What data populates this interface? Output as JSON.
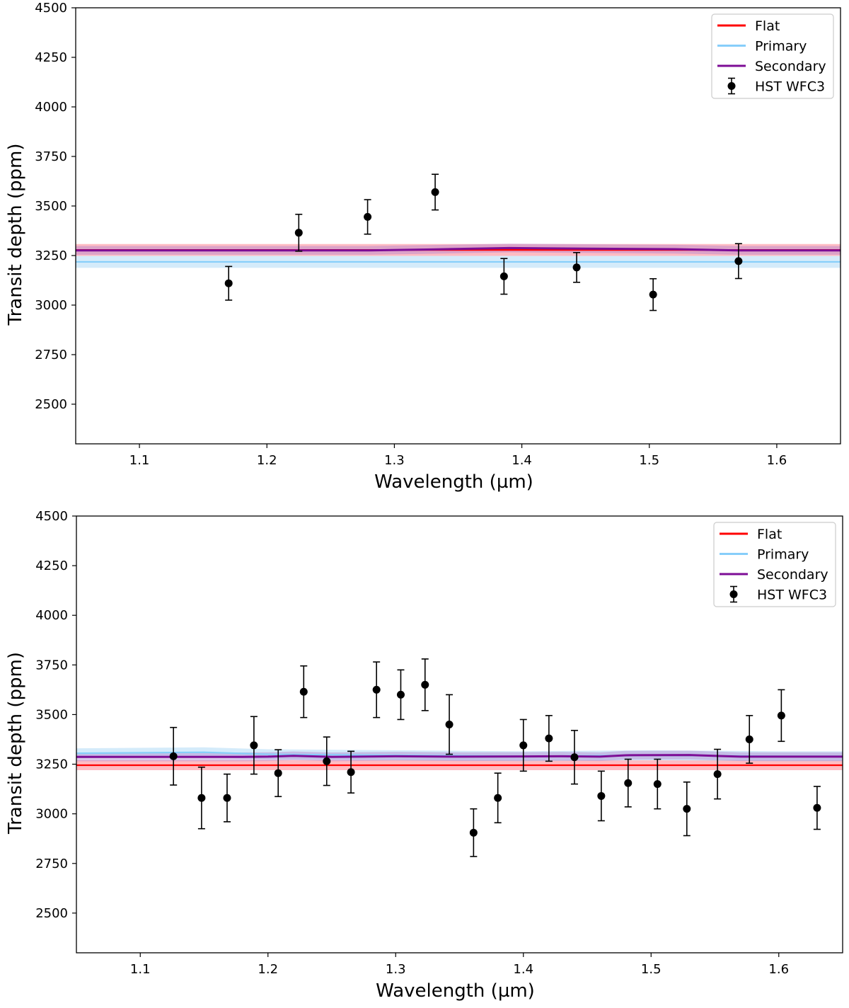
{
  "chart_data": [
    {
      "type": "scatter",
      "title": "",
      "xlabel": "Wavelength (µm)",
      "ylabel": "Transit depth (ppm)",
      "xlim": [
        1.05,
        1.65
      ],
      "ylim": [
        2300,
        4500
      ],
      "xticks": [
        1.1,
        1.2,
        1.3,
        1.4,
        1.5,
        1.6
      ],
      "xtick_labels": [
        "1.1",
        "1.2",
        "1.3",
        "1.4",
        "1.5",
        "1.6"
      ],
      "yticks": [
        2500,
        2750,
        3000,
        3250,
        3500,
        3750,
        4000,
        4250,
        4500
      ],
      "ytick_labels": [
        "2500",
        "2750",
        "3000",
        "3250",
        "3500",
        "3750",
        "4000",
        "4250",
        "4500"
      ],
      "grid": false,
      "legend_position": "top-right",
      "legend": [
        "Flat",
        "Primary",
        "Secondary",
        "HST WFC3"
      ],
      "models": [
        {
          "name": "Flat",
          "color": "#ff0000",
          "band_color": "#ff6b7a",
          "x": [
            1.05,
            1.65
          ],
          "y": [
            3278,
            3278
          ],
          "band": 30
        },
        {
          "name": "Primary",
          "color": "#87cefa",
          "band_color": "#9fd3f5",
          "x": [
            1.05,
            1.65
          ],
          "y": [
            3218,
            3218
          ],
          "band": 30
        },
        {
          "name": "Secondary",
          "color": "#7d0d96",
          "band_color": "#b286cf",
          "x": [
            1.05,
            1.28,
            1.33,
            1.39,
            1.45,
            1.52,
            1.57,
            1.65
          ],
          "y": [
            3276,
            3276,
            3281,
            3288,
            3285,
            3282,
            3276,
            3276
          ],
          "band": 22
        }
      ],
      "data_series": {
        "name": "HST WFC3",
        "color": "#000000",
        "x": [
          1.17,
          1.225,
          1.279,
          1.332,
          1.386,
          1.443,
          1.503,
          1.57
        ],
        "y": [
          3110,
          3365,
          3445,
          3570,
          3145,
          3190,
          3053,
          3222
        ],
        "err": [
          85,
          93,
          87,
          90,
          90,
          75,
          80,
          88
        ]
      }
    },
    {
      "type": "scatter",
      "title": "",
      "xlabel": "Wavelength (µm)",
      "ylabel": "Transit depth (ppm)",
      "xlim": [
        1.05,
        1.65
      ],
      "ylim": [
        2300,
        4500
      ],
      "xticks": [
        1.1,
        1.2,
        1.3,
        1.4,
        1.5,
        1.6
      ],
      "xtick_labels": [
        "1.1",
        "1.2",
        "1.3",
        "1.4",
        "1.5",
        "1.6"
      ],
      "yticks": [
        2500,
        2750,
        3000,
        3250,
        3500,
        3750,
        4000,
        4250,
        4500
      ],
      "ytick_labels": [
        "2500",
        "2750",
        "3000",
        "3250",
        "3500",
        "3750",
        "4000",
        "4250",
        "4500"
      ],
      "grid": false,
      "legend_position": "top-right",
      "legend": [
        "Flat",
        "Primary",
        "Secondary",
        "HST WFC3"
      ],
      "models": [
        {
          "name": "Flat",
          "color": "#ff0000",
          "band_color": "#ff6b7a",
          "x": [
            1.05,
            1.65
          ],
          "y": [
            3245,
            3245
          ],
          "band": 25
        },
        {
          "name": "Primary",
          "color": "#87cefa",
          "band_color": "#9fd3f5",
          "x": [
            1.05,
            1.15,
            1.2,
            1.3,
            1.4,
            1.5,
            1.6,
            1.65
          ],
          "y": [
            3305,
            3310,
            3300,
            3295,
            3290,
            3295,
            3290,
            3290
          ],
          "band": 25
        },
        {
          "name": "Secondary",
          "color": "#7d0d96",
          "band_color": "#b286cf",
          "x": [
            1.05,
            1.18,
            1.2,
            1.22,
            1.25,
            1.3,
            1.35,
            1.4,
            1.43,
            1.46,
            1.48,
            1.53,
            1.57,
            1.65
          ],
          "y": [
            3287,
            3287,
            3288,
            3292,
            3287,
            3290,
            3288,
            3289,
            3290,
            3288,
            3295,
            3296,
            3288,
            3288
          ],
          "band": 22
        }
      ],
      "data_series": {
        "name": "HST WFC3",
        "color": "#000000",
        "x": [
          1.126,
          1.148,
          1.168,
          1.189,
          1.208,
          1.228,
          1.246,
          1.265,
          1.285,
          1.304,
          1.323,
          1.342,
          1.361,
          1.38,
          1.4,
          1.42,
          1.44,
          1.461,
          1.482,
          1.505,
          1.528,
          1.552,
          1.577,
          1.602,
          1.63
        ],
        "y": [
          3290,
          3080,
          3080,
          3345,
          3205,
          3615,
          3265,
          3210,
          3625,
          3600,
          3650,
          3450,
          2905,
          3080,
          3345,
          3380,
          3285,
          3090,
          3155,
          3150,
          3025,
          3200,
          3375,
          3495,
          3030
        ],
        "err": [
          145,
          155,
          120,
          145,
          118,
          130,
          122,
          105,
          140,
          125,
          130,
          150,
          120,
          125,
          130,
          115,
          135,
          125,
          120,
          125,
          135,
          125,
          120,
          130,
          108
        ]
      }
    }
  ]
}
